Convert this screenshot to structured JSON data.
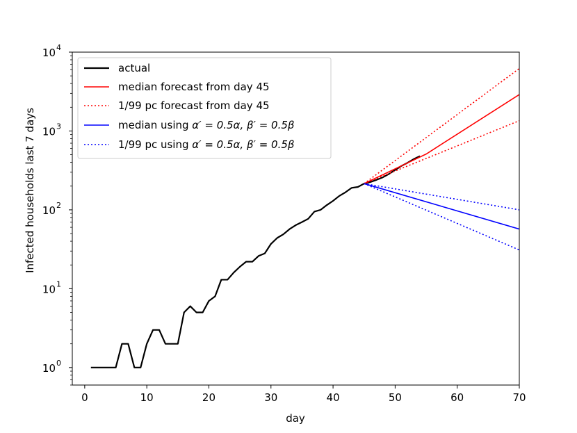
{
  "chart_data": {
    "type": "line",
    "yscale": "log",
    "xlabel": "day",
    "ylabel": "Infected households last 7 days",
    "xlim": [
      -2,
      70
    ],
    "ylim": [
      0.6,
      10000
    ],
    "xticks": [
      0,
      10,
      20,
      30,
      40,
      50,
      60,
      70
    ],
    "yticks": [
      {
        "value": 1,
        "base": "10",
        "exp": "0"
      },
      {
        "value": 10,
        "base": "10",
        "exp": "1"
      },
      {
        "value": 100,
        "base": "10",
        "exp": "2"
      },
      {
        "value": 1000,
        "base": "10",
        "exp": "3"
      },
      {
        "value": 10000,
        "base": "10",
        "exp": "4"
      }
    ],
    "legend_position": "top-left",
    "legend": [
      {
        "key": "actual",
        "color": "#000000",
        "dash": "solid",
        "width": 2.2,
        "label": "actual"
      },
      {
        "key": "median_forecast",
        "color": "#ff0000",
        "dash": "solid",
        "width": 1.6,
        "label": "median  forecast from day 45"
      },
      {
        "key": "pc_forecast",
        "color": "#ff0000",
        "dash": "dotted",
        "width": 1.6,
        "label": "1/99 pc  forecast from day 45"
      },
      {
        "key": "median_half",
        "color": "#0000ff",
        "dash": "solid",
        "width": 1.6,
        "label_prefix": "median using ",
        "alpha_text": "α′ = 0.5α, β′ = 0.5β"
      },
      {
        "key": "pc_half",
        "color": "#0000ff",
        "dash": "dotted",
        "width": 1.6,
        "label_prefix": "1/99 pc using ",
        "alpha_text": "α′ = 0.5α, β′ = 0.5β"
      }
    ],
    "series": [
      {
        "name": "actual",
        "color": "#000000",
        "dash": "solid",
        "width": 2.2,
        "x": [
          1,
          2,
          3,
          4,
          5,
          6,
          7,
          8,
          9,
          10,
          11,
          12,
          13,
          14,
          15,
          16,
          17,
          18,
          19,
          20,
          21,
          22,
          23,
          24,
          25,
          26,
          27,
          28,
          29,
          30,
          31,
          32,
          33,
          34,
          35,
          36,
          37,
          38,
          39,
          40,
          41,
          42,
          43,
          44,
          45,
          46,
          47,
          48,
          49,
          50,
          51,
          52,
          53,
          54
        ],
        "y": [
          1,
          1,
          1,
          1,
          1,
          2,
          2,
          1,
          1,
          2,
          3,
          3,
          2,
          2,
          2,
          5,
          6,
          5,
          5,
          7,
          8,
          13,
          13,
          16,
          19,
          22,
          22,
          26,
          28,
          37,
          44,
          49,
          57,
          64,
          70,
          77,
          95,
          100,
          115,
          130,
          150,
          167,
          190,
          195,
          215,
          225,
          240,
          258,
          285,
          320,
          360,
          395,
          440,
          480
        ]
      },
      {
        "name": "median forecast from day 45",
        "color": "#ff0000",
        "dash": "solid",
        "width": 1.6,
        "x": [
          45,
          55,
          70
        ],
        "y": [
          215,
          510,
          2900
        ]
      },
      {
        "name": "99 pc forecast from day 45",
        "color": "#ff0000",
        "dash": "dotted",
        "width": 1.6,
        "x": [
          45,
          70
        ],
        "y": [
          215,
          6200
        ]
      },
      {
        "name": "1 pc forecast from day 45",
        "color": "#ff0000",
        "dash": "dotted",
        "width": 1.6,
        "x": [
          45,
          70
        ],
        "y": [
          215,
          1350
        ]
      },
      {
        "name": "median using half parameters",
        "color": "#0000ff",
        "dash": "solid",
        "width": 1.6,
        "x": [
          45,
          70
        ],
        "y": [
          215,
          57
        ]
      },
      {
        "name": "99 pc using half parameters",
        "color": "#0000ff",
        "dash": "dotted",
        "width": 1.6,
        "x": [
          45,
          70
        ],
        "y": [
          215,
          100
        ]
      },
      {
        "name": "1 pc using half parameters",
        "color": "#0000ff",
        "dash": "dotted",
        "width": 1.6,
        "x": [
          45,
          70
        ],
        "y": [
          215,
          31
        ]
      }
    ]
  }
}
